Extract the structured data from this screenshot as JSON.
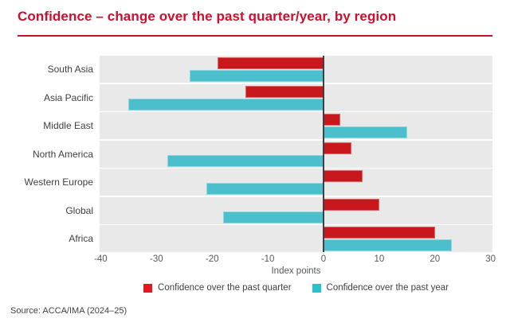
{
  "header": {
    "title": "Confidence – change over the past quarter/year, by region"
  },
  "chart_data": {
    "type": "bar",
    "orientation": "horizontal",
    "title": "Confidence – change over the past quarter/year, by region",
    "categories": [
      "South Asia",
      "Asia Pacific",
      "Middle East",
      "North America",
      "Western Europe",
      "Global",
      "Africa"
    ],
    "series": [
      {
        "name": "Confidence over the past quarter",
        "values": [
          -19,
          -14,
          3,
          5,
          7,
          10,
          20
        ],
        "color": "#c8181d",
        "edge_color": "#dd6a6a",
        "legend_color": "#e2181e"
      },
      {
        "name": "Confidence over the past year",
        "values": [
          -24,
          -35,
          15,
          -28,
          -21,
          -18,
          23
        ],
        "color": "#4bbfcc",
        "edge_color": "#8fd6de",
        "legend_color": "#28c2ce"
      }
    ],
    "xlabel": "Index points",
    "xlim": [
      -40,
      30
    ],
    "xticks": [
      -40,
      -30,
      -20,
      -10,
      0,
      10,
      20,
      30
    ],
    "grid": false,
    "legend_position": "bottom",
    "row_band_color": "#e9e9e9",
    "zero_line_color": "#3f4041"
  },
  "colors": {
    "title_red": "#ce0e2d",
    "axis_text": "#55575a",
    "label_text": "#414042"
  },
  "footer": {
    "source": "Source: ACCA/IMA (2024–25)"
  }
}
